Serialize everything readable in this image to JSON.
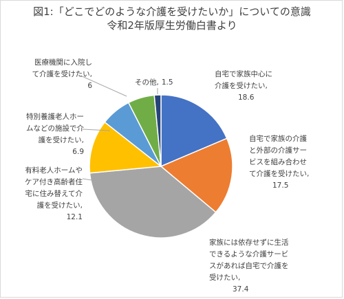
{
  "chart_data": {
    "type": "pie",
    "title": "図1:「どこでどのような介護を受けたいか」についての意識",
    "subtitle": "令和2年版厚生労働白書より",
    "slices": [
      {
        "label_lines": [
          "自宅で家族中心に",
          "介護を受けたい,"
        ],
        "value_text": "18.6",
        "value": 18.6,
        "color": "#4472c4"
      },
      {
        "label_lines": [
          "自宅で家族の介護",
          "と外部の介護サー",
          "ビスを組み合わせ",
          "て介護を受けたい,"
        ],
        "value_text": "17.5",
        "value": 17.5,
        "color": "#ed7d31"
      },
      {
        "label_lines": [
          "家族には依存せずに生活",
          "できるような介護サービ",
          "スがあれば自宅で介護を",
          "受けたい,"
        ],
        "value_text": "37.4",
        "value": 37.4,
        "color": "#a5a5a5"
      },
      {
        "label_lines": [
          "有料老人ホームや",
          "ケア付き高齢者住",
          "宅に住み替えて介",
          "護を受けたい,"
        ],
        "value_text": "12.1",
        "value": 12.1,
        "color": "#ffc000"
      },
      {
        "label_lines": [
          "特別養護老人ホー",
          "ムなどの施設で介",
          "護を受けたい,"
        ],
        "value_text": "6.9",
        "value": 6.9,
        "color": "#5b9bd5"
      },
      {
        "label_lines": [
          "医療機関に入院し",
          "て介護を受けたい,"
        ],
        "value_text": "6",
        "value": 6,
        "color": "#70ad47"
      },
      {
        "label_lines": [
          "その他,"
        ],
        "value_text": "1.5",
        "value": 1.5,
        "color": "#264478"
      }
    ]
  }
}
